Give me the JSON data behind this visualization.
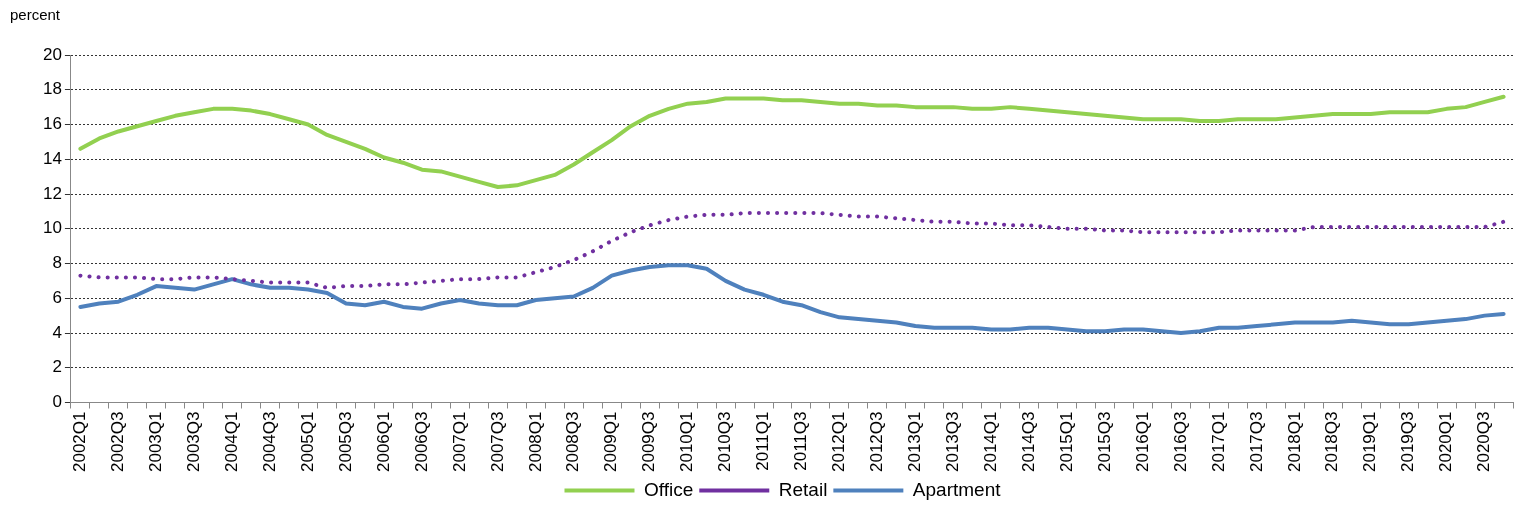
{
  "chart_data": {
    "type": "line",
    "ylabel": "percent",
    "categories": [
      "2002Q1",
      null,
      "2002Q3",
      null,
      "2003Q1",
      null,
      "2003Q3",
      null,
      "2004Q1",
      null,
      "2004Q3",
      null,
      "2005Q1",
      null,
      "2005Q3",
      null,
      "2006Q1",
      null,
      "2006Q3",
      null,
      "2007Q1",
      null,
      "2007Q3",
      null,
      "2008Q1",
      null,
      "2008Q3",
      null,
      "2009Q1",
      null,
      "2009Q3",
      null,
      "2010Q1",
      null,
      "2010Q3",
      null,
      "2011Q1",
      null,
      "2011Q3",
      null,
      "2012Q1",
      null,
      "2012Q3",
      null,
      "2013Q1",
      null,
      "2013Q3",
      null,
      "2014Q1",
      null,
      "2014Q3",
      null,
      "2015Q1",
      null,
      "2015Q3",
      null,
      "2016Q1",
      null,
      "2016Q3",
      null,
      "2017Q1",
      null,
      "2017Q3",
      null,
      "2018Q1",
      null,
      "2018Q3",
      null,
      "2019Q1",
      null,
      "2019Q3",
      null,
      "2020Q1",
      null,
      "2020Q3",
      null
    ],
    "series": [
      {
        "name": "Office",
        "color": "#92d050",
        "line_style": "solid",
        "values": [
          14.6,
          15.2,
          15.6,
          15.9,
          16.2,
          16.5,
          16.7,
          16.9,
          16.9,
          16.8,
          16.6,
          16.3,
          16.0,
          15.4,
          15.0,
          14.6,
          14.1,
          13.8,
          13.4,
          13.3,
          13.0,
          12.7,
          12.4,
          12.5,
          12.8,
          13.1,
          13.7,
          14.4,
          15.1,
          15.9,
          16.5,
          16.9,
          17.2,
          17.3,
          17.5,
          17.5,
          17.5,
          17.4,
          17.4,
          17.3,
          17.2,
          17.2,
          17.1,
          17.1,
          17.0,
          17.0,
          17.0,
          16.9,
          16.9,
          17.0,
          16.9,
          16.8,
          16.7,
          16.6,
          16.5,
          16.4,
          16.3,
          16.3,
          16.3,
          16.2,
          16.2,
          16.3,
          16.3,
          16.3,
          16.4,
          16.5,
          16.6,
          16.6,
          16.6,
          16.7,
          16.7,
          16.7,
          16.9,
          17.0,
          17.3,
          17.6
        ]
      },
      {
        "name": "Retail",
        "color": "#7030a0",
        "line_style": "dotted",
        "values": [
          7.3,
          7.2,
          7.2,
          7.2,
          7.1,
          7.1,
          7.2,
          7.2,
          7.1,
          7.0,
          6.9,
          6.9,
          6.9,
          6.6,
          6.7,
          6.7,
          6.8,
          6.8,
          6.9,
          7.0,
          7.1,
          7.1,
          7.2,
          7.2,
          7.5,
          7.8,
          8.2,
          8.7,
          9.3,
          9.8,
          10.2,
          10.5,
          10.7,
          10.8,
          10.8,
          10.9,
          10.9,
          10.9,
          10.9,
          10.9,
          10.8,
          10.7,
          10.7,
          10.6,
          10.5,
          10.4,
          10.4,
          10.3,
          10.3,
          10.2,
          10.2,
          10.1,
          10.0,
          10.0,
          9.9,
          9.9,
          9.8,
          9.8,
          9.8,
          9.8,
          9.8,
          9.9,
          9.9,
          9.9,
          9.9,
          10.1,
          10.1,
          10.1,
          10.1,
          10.1,
          10.1,
          10.1,
          10.1,
          10.1,
          10.1,
          10.4
        ]
      },
      {
        "name": "Apartment",
        "color": "#4f81bd",
        "line_style": "solid",
        "values": [
          5.5,
          5.7,
          5.8,
          6.2,
          6.7,
          6.6,
          6.5,
          6.8,
          7.1,
          6.8,
          6.6,
          6.6,
          6.5,
          6.3,
          5.7,
          5.6,
          5.8,
          5.5,
          5.4,
          5.7,
          5.9,
          5.7,
          5.6,
          5.6,
          5.9,
          6.0,
          6.1,
          6.6,
          7.3,
          7.6,
          7.8,
          7.9,
          7.9,
          7.7,
          7.0,
          6.5,
          6.2,
          5.8,
          5.6,
          5.2,
          4.9,
          4.8,
          4.7,
          4.6,
          4.4,
          4.3,
          4.3,
          4.3,
          4.2,
          4.2,
          4.3,
          4.3,
          4.2,
          4.1,
          4.1,
          4.2,
          4.2,
          4.1,
          4.0,
          4.1,
          4.3,
          4.3,
          4.4,
          4.5,
          4.6,
          4.6,
          4.6,
          4.7,
          4.6,
          4.5,
          4.5,
          4.6,
          4.7,
          4.8,
          5.0,
          5.1
        ]
      }
    ],
    "ylim": [
      0,
      20
    ],
    "yticks": [
      0,
      2,
      4,
      6,
      8,
      10,
      12,
      14,
      16,
      18,
      20
    ],
    "grid": "y",
    "legend": "bottom",
    "marker": "none"
  }
}
